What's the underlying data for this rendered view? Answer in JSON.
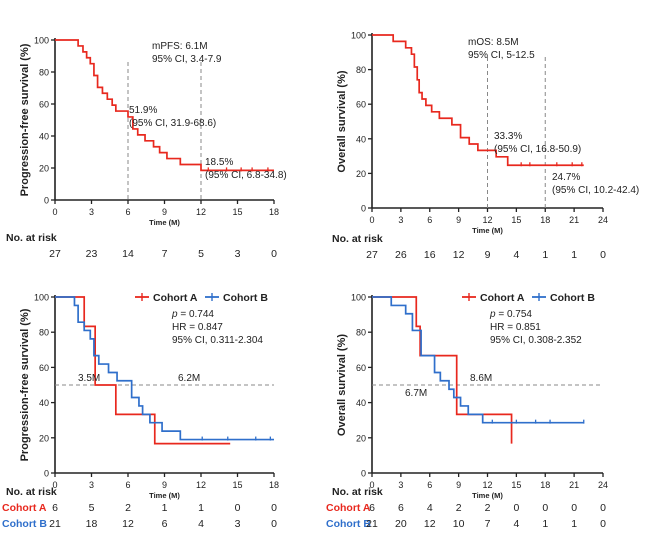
{
  "colors": {
    "red": "#e8281e",
    "blue": "#2f6fcb",
    "axis": "#222222",
    "ref": "#888888"
  },
  "chart_data": [
    {
      "type": "line",
      "subtype": "kaplan-meier",
      "ylabel": "Progression-free survival (%)",
      "xlabel": "Time (M)",
      "xlim": [
        0,
        18
      ],
      "ylim": [
        0,
        100
      ],
      "xticks": [
        "0",
        "3",
        "6",
        "9",
        "12",
        "15",
        "18"
      ],
      "yticks": [
        "0",
        "20",
        "40",
        "60",
        "80",
        "100"
      ],
      "series": [
        {
          "name": "All",
          "color": "#e8281e",
          "x": [
            0,
            1.9,
            2.3,
            2.6,
            2.9,
            3.2,
            3.5,
            3.9,
            4.3,
            4.7,
            5.0,
            6.0,
            6.4,
            6.8,
            7.4,
            8.1,
            8.6,
            9.2,
            10.3,
            12.0,
            18.0
          ],
          "y": [
            100,
            96.3,
            92.6,
            88.9,
            85.2,
            77.8,
            70.4,
            66.7,
            63.0,
            59.3,
            55.6,
            51.9,
            44.4,
            40.7,
            37.0,
            33.3,
            29.6,
            25.9,
            22.2,
            18.5,
            18.5
          ],
          "censor_x": [
            12.6,
            14.1,
            15.3,
            16.2,
            17.5
          ],
          "censor_y": 18.5
        }
      ],
      "ref_lines": [
        {
          "x": 6,
          "y": 51.9
        },
        {
          "x": 12,
          "y": 18.5
        }
      ],
      "annotations": {
        "summary": [
          "mPFS: 6.1M",
          "95% CI, 3.4-7.9"
        ],
        "at6": [
          "51.9%",
          "(95% CI, 31.9-68.6)"
        ],
        "at12": [
          "18.5%",
          "(95% CI, 6.8-34.8)"
        ]
      },
      "risk_title": "No. at risk",
      "risk_rows": [
        {
          "label": "",
          "values": [
            "27",
            "23",
            "14",
            "7",
            "5",
            "3",
            "0"
          ]
        }
      ]
    },
    {
      "type": "line",
      "subtype": "kaplan-meier",
      "ylabel": "Overall survival (%)",
      "xlabel": "Time (M)",
      "xlim": [
        0,
        24
      ],
      "ylim": [
        0,
        100
      ],
      "xticks": [
        "0",
        "3",
        "6",
        "9",
        "12",
        "15",
        "18",
        "21",
        "24"
      ],
      "yticks": [
        "0",
        "20",
        "40",
        "60",
        "80",
        "100"
      ],
      "series": [
        {
          "name": "All",
          "color": "#e8281e",
          "x": [
            0,
            2.2,
            3.5,
            4.1,
            4.4,
            4.7,
            4.9,
            5.2,
            5.6,
            6.2,
            7.0,
            8.3,
            9.2,
            10.1,
            11.0,
            11.8,
            12.9,
            14.1,
            22.0
          ],
          "y": [
            100,
            96.3,
            92.6,
            88.9,
            81.5,
            74.1,
            66.7,
            63.0,
            59.3,
            55.6,
            51.9,
            48.1,
            40.7,
            37.0,
            33.3,
            33.3,
            29.6,
            24.7,
            24.7
          ],
          "censor_x": [
            15.5,
            16.4,
            19.2,
            20.8,
            21.8
          ],
          "censor_y": 24.7
        }
      ],
      "ref_lines": [
        {
          "x": 12,
          "y": 33.3
        },
        {
          "x": 18,
          "y": 24.7
        }
      ],
      "annotations": {
        "summary": [
          "mOS: 8.5M",
          "95% CI, 5-12.5"
        ],
        "at12": [
          "33.3%",
          "(95% CI, 16.8-50.9)"
        ],
        "at18": [
          "24.7%",
          "(95% CI, 10.2-42.4)"
        ]
      },
      "risk_title": "No. at risk",
      "risk_rows": [
        {
          "label": "",
          "values": [
            "27",
            "26",
            "16",
            "12",
            "9",
            "4",
            "1",
            "1",
            "0"
          ]
        }
      ]
    },
    {
      "type": "line",
      "subtype": "kaplan-meier",
      "ylabel": "Progression-free survival (%)",
      "xlabel": "Time (M)",
      "xlim": [
        0,
        18
      ],
      "ylim": [
        0,
        100
      ],
      "xticks": [
        "0",
        "3",
        "6",
        "9",
        "12",
        "15",
        "18"
      ],
      "yticks": [
        "0",
        "20",
        "40",
        "60",
        "80",
        "100"
      ],
      "legend": [
        "Cohort A",
        "Cohort B"
      ],
      "series": [
        {
          "name": "Cohort A",
          "color": "#e8281e",
          "x": [
            0,
            2.4,
            3.3,
            5.0,
            8.2,
            14.4
          ],
          "y": [
            100,
            83.3,
            50.0,
            33.3,
            16.7,
            16.7
          ],
          "censor_x": [],
          "censor_y": 16.7
        },
        {
          "name": "Cohort B",
          "color": "#2f6fcb",
          "x": [
            0,
            1.6,
            1.9,
            2.4,
            2.9,
            3.2,
            3.6,
            4.4,
            5.1,
            6.3,
            6.9,
            7.2,
            7.8,
            8.8,
            10.3,
            18.0
          ],
          "y": [
            100,
            95.2,
            85.7,
            81.0,
            76.2,
            66.7,
            61.9,
            57.1,
            52.4,
            42.9,
            38.1,
            33.3,
            28.6,
            23.8,
            19.0,
            19.0
          ],
          "censor_x": [
            12.1,
            14.2,
            16.5,
            17.7
          ],
          "censor_y": 19.0
        }
      ],
      "median_line_y": 50,
      "annotations": {
        "stats": [
          "p",
          " = 0.744",
          "HR = 0.847",
          "95% CI, 0.311-2.304"
        ],
        "medA": "3.5M",
        "medB": "6.2M"
      },
      "risk_title": "No. at risk",
      "risk_rows": [
        {
          "label": "Cohort A",
          "color": "#e8281e",
          "values": [
            "6",
            "5",
            "2",
            "1",
            "1",
            "0",
            "0"
          ]
        },
        {
          "label": "Cohort B",
          "color": "#2f6fcb",
          "values": [
            "21",
            "18",
            "12",
            "6",
            "4",
            "3",
            "0"
          ]
        }
      ]
    },
    {
      "type": "line",
      "subtype": "kaplan-meier",
      "ylabel": "Overall survival (%)",
      "xlabel": "Time (M)",
      "xlim": [
        0,
        24
      ],
      "ylim": [
        0,
        100
      ],
      "xticks": [
        "0",
        "3",
        "6",
        "9",
        "12",
        "15",
        "18",
        "21",
        "24"
      ],
      "yticks": [
        "0",
        "20",
        "40",
        "60",
        "80",
        "100"
      ],
      "legend": [
        "Cohort A",
        "Cohort B"
      ],
      "series": [
        {
          "name": "Cohort A",
          "color": "#e8281e",
          "x": [
            0,
            4.6,
            5.0,
            8.8,
            14.1,
            14.5
          ],
          "y": [
            100,
            83.3,
            66.7,
            33.3,
            33.3,
            16.7
          ],
          "censor_x": [],
          "censor_y": 16.7
        },
        {
          "name": "Cohort B",
          "color": "#2f6fcb",
          "x": [
            0,
            2.0,
            3.5,
            4.2,
            5.1,
            6.5,
            7.1,
            8.0,
            8.5,
            9.2,
            10.0,
            11.5,
            22.0
          ],
          "y": [
            100,
            95.2,
            90.5,
            81.0,
            66.7,
            57.1,
            52.4,
            47.6,
            42.9,
            38.1,
            33.3,
            28.6,
            28.6
          ],
          "censor_x": [
            12.5,
            15.0,
            17.0,
            18.5,
            22.0
          ],
          "censor_y": 28.6
        }
      ],
      "median_line_y": 50,
      "annotations": {
        "stats": [
          "p",
          " = 0.754",
          "HR = 0.851",
          "95% CI, 0.308-2.352"
        ],
        "medA": "6.7M",
        "medB": "8.6M"
      },
      "risk_title": "No. at risk",
      "risk_rows": [
        {
          "label": "Cohort A",
          "color": "#e8281e",
          "values": [
            "6",
            "6",
            "4",
            "2",
            "2",
            "0",
            "0",
            "0",
            "0"
          ]
        },
        {
          "label": "Cohort B",
          "color": "#2f6fcb",
          "values": [
            "21",
            "20",
            "12",
            "10",
            "7",
            "4",
            "1",
            "1",
            "0"
          ]
        }
      ]
    }
  ]
}
